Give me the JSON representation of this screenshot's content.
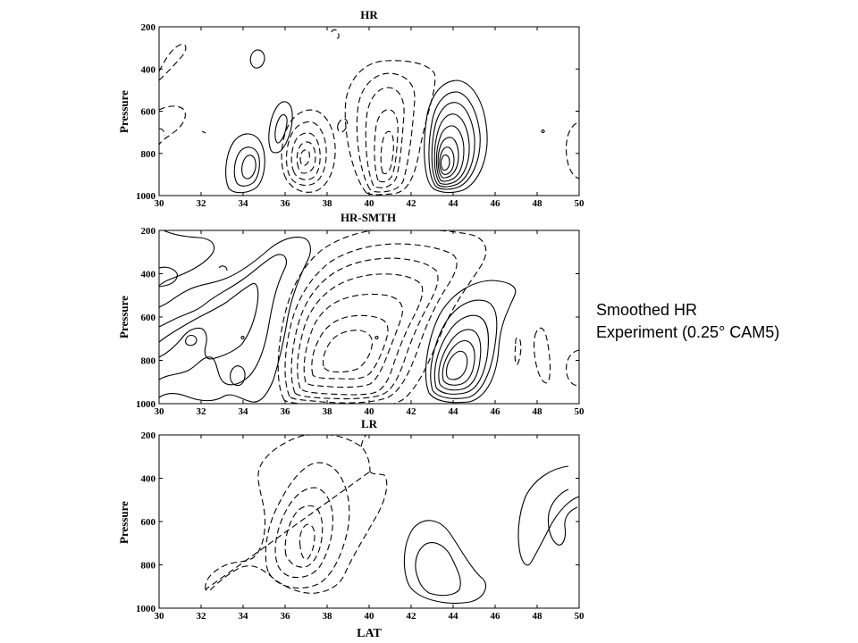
{
  "caption": {
    "line1": "Smoothed HR",
    "line2": "Experiment (0.25° CAM5)"
  },
  "chart_data": [
    {
      "type": "contour",
      "title": "HR",
      "xlabel": "",
      "ylabel": "Pressure",
      "xlim": [
        30,
        50
      ],
      "ylim": [
        1000,
        200
      ],
      "xticks": [
        30,
        32,
        34,
        36,
        38,
        40,
        42,
        44,
        46,
        48,
        50
      ],
      "yticks": [
        200,
        400,
        600,
        800,
        1000
      ],
      "line_styles": {
        "positive": "solid",
        "negative": "dashed"
      },
      "features": [
        {
          "sign": "positive",
          "center_lat": 43.5,
          "center_p": 850,
          "levels": 8
        },
        {
          "sign": "positive",
          "center_lat": 34.6,
          "center_p": 820,
          "levels": 3
        },
        {
          "sign": "positive",
          "center_lat": 36.0,
          "center_p": 630,
          "levels": 2
        },
        {
          "sign": "negative",
          "center_lat": 40.7,
          "center_p": 620,
          "levels": 5
        },
        {
          "sign": "negative",
          "center_lat": 37.2,
          "center_p": 790,
          "levels": 5
        },
        {
          "sign": "negative",
          "center_lat": 30.6,
          "center_p": 420,
          "levels": 1
        },
        {
          "sign": "negative",
          "center_lat": 49.6,
          "center_p": 780,
          "levels": 1
        }
      ]
    },
    {
      "type": "contour",
      "title": "HR-SMTH",
      "xlabel": "",
      "ylabel": "Pressure",
      "xlim": [
        30,
        50
      ],
      "ylim": [
        1000,
        200
      ],
      "xticks": [
        30,
        32,
        34,
        36,
        38,
        40,
        42,
        44,
        46,
        48,
        50
      ],
      "yticks": [
        200,
        400,
        600,
        800,
        1000
      ],
      "line_styles": {
        "positive": "solid",
        "negative": "dashed"
      },
      "features": [
        {
          "sign": "positive",
          "center_lat": 44.0,
          "center_p": 830,
          "levels": 6
        },
        {
          "sign": "positive",
          "center_lat": 33.0,
          "center_p": 650,
          "levels": 4
        },
        {
          "sign": "negative",
          "center_lat": 40.2,
          "center_p": 640,
          "levels": 6
        },
        {
          "sign": "negative",
          "center_lat": 47.2,
          "center_p": 800,
          "levels": 1
        },
        {
          "sign": "negative",
          "center_lat": 49.2,
          "center_p": 880,
          "levels": 1
        }
      ]
    },
    {
      "type": "contour",
      "title": "LR",
      "xlabel": "LAT",
      "ylabel": "Pressure",
      "xlim": [
        30,
        50
      ],
      "ylim": [
        1000,
        200
      ],
      "xticks": [
        30,
        32,
        34,
        36,
        38,
        40,
        42,
        44,
        46,
        48,
        50
      ],
      "yticks": [
        200,
        400,
        600,
        800,
        1000
      ],
      "line_styles": {
        "positive": "solid",
        "negative": "dashed"
      },
      "features": [
        {
          "sign": "positive",
          "center_lat": 43.0,
          "center_p": 830,
          "levels": 2
        },
        {
          "sign": "positive",
          "center_lat": 48.8,
          "center_p": 620,
          "levels": 2
        },
        {
          "sign": "negative",
          "center_lat": 37.3,
          "center_p": 700,
          "levels": 4
        },
        {
          "sign": "negative",
          "center_lat": 33.5,
          "center_p": 860,
          "levels": 1
        }
      ]
    }
  ]
}
